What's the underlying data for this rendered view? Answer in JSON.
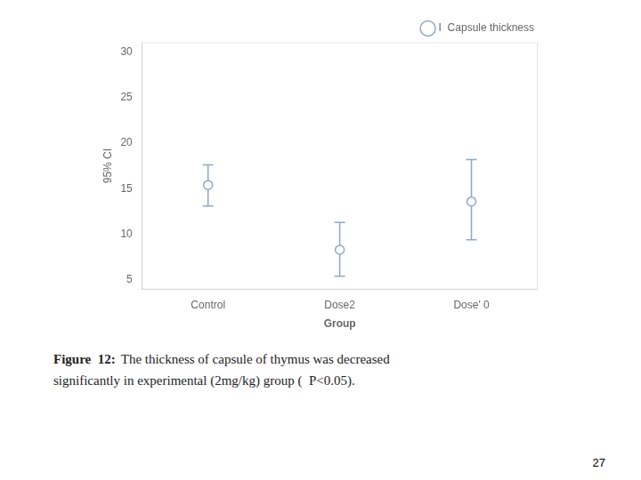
{
  "chart_data": {
    "type": "errorbar",
    "xlabel": "Group",
    "ylabel": "95% CI",
    "categories": [
      "Control",
      "Dose2",
      "Dose' 0"
    ],
    "series": [
      {
        "name": "I  Capsule thickness",
        "color": "#8fa8c8",
        "marker": "circle",
        "values": [
          15.4,
          8.3,
          13.6
        ],
        "ci_lower": [
          13.1,
          5.4,
          9.4
        ],
        "ci_upper": [
          17.6,
          11.3,
          18.2
        ]
      }
    ],
    "ylim": [
      4,
      31
    ],
    "yticks": [
      5,
      10,
      15,
      20,
      25,
      30
    ],
    "grid": false,
    "legend": "upper right",
    "caption": {
      "bold": "Figure  12:",
      "lines": [
        "The thickness of capsule of thymus was decreased",
        "significantly in experimental (2mg/kg) group (  P<0.05)."
      ]
    },
    "page_number": "27"
  }
}
